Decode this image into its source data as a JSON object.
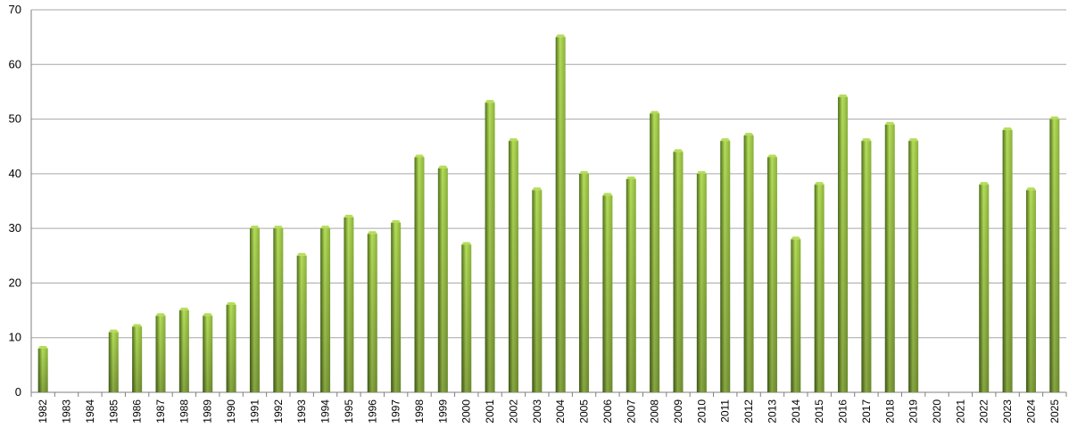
{
  "chart_data": {
    "type": "bar",
    "title": "",
    "xlabel": "",
    "ylabel": "",
    "ylim": [
      0,
      70
    ],
    "yticks": [
      0,
      10,
      20,
      30,
      40,
      50,
      60,
      70
    ],
    "grid": true,
    "legend": "none",
    "bar_color": "#8ab13a",
    "bar_color_light": "#b5dd5a",
    "bar_color_dark": "#4e6e1a",
    "grid_color": "#a6a6a6",
    "categories": [
      "1982",
      "1983",
      "1984",
      "1985",
      "1986",
      "1987",
      "1988",
      "1989",
      "1990",
      "1991",
      "1992",
      "1993",
      "1994",
      "1995",
      "1996",
      "1997",
      "1998",
      "1999",
      "2000",
      "2001",
      "2002",
      "2003",
      "2004",
      "2005",
      "2006",
      "2007",
      "2008",
      "2009",
      "2010",
      "2011",
      "2012",
      "2013",
      "2014",
      "2015",
      "2016",
      "2017",
      "2018",
      "2019",
      "2020",
      "2021",
      "2022",
      "2023",
      "2024",
      "2025"
    ],
    "values": [
      8,
      0,
      0,
      11,
      12,
      14,
      15,
      14,
      16,
      30,
      30,
      25,
      30,
      32,
      29,
      31,
      43,
      41,
      27,
      53,
      46,
      37,
      65,
      40,
      36,
      39,
      51,
      44,
      40,
      46,
      47,
      43,
      28,
      38,
      54,
      46,
      49,
      46,
      0,
      0,
      38,
      48,
      37,
      50
    ]
  }
}
